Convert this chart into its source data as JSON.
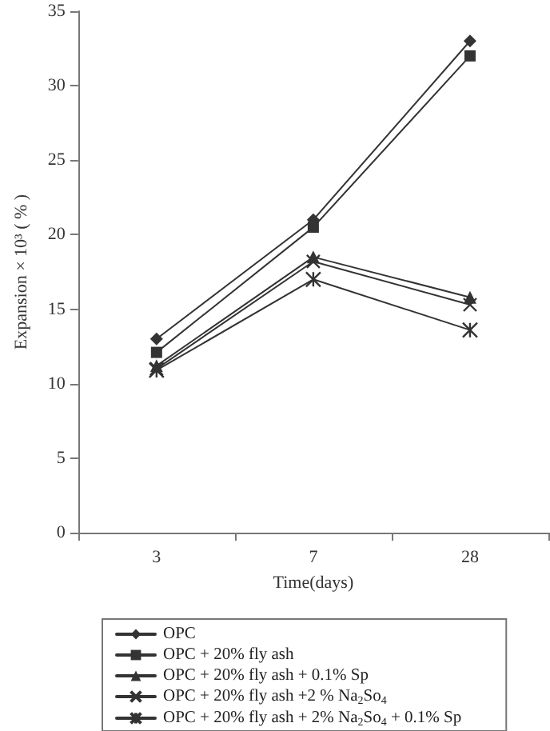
{
  "chart_data": {
    "type": "line",
    "xlabel": "Time(days)",
    "ylabel": "Expansion × 10³ ( % )",
    "categories": [
      "3",
      "7",
      "28"
    ],
    "ylim": [
      0,
      35
    ],
    "yticks": [
      0,
      5,
      10,
      15,
      20,
      25,
      30,
      35
    ],
    "grid": false,
    "legend": "bottom",
    "line_style": "solid",
    "series": [
      {
        "name": "OPC",
        "color": "#333333",
        "marker": "diamond",
        "values": [
          13,
          21,
          33
        ]
      },
      {
        "name": "OPC + 20% fly ash",
        "color": "#333333",
        "marker": "square",
        "values": [
          12.1,
          20.5,
          32
        ]
      },
      {
        "name": "OPC + 20% fly ash + 0.1% Sp",
        "color": "#333333",
        "marker": "triangle",
        "values": [
          11.2,
          18.5,
          15.8
        ]
      },
      {
        "name": "OPC + 20% fly ash +2 % Na$_{2}$So$_{4}$",
        "color": "#333333",
        "marker": "cross",
        "values": [
          11,
          18.2,
          15.3
        ]
      },
      {
        "name": "OPC + 20% fly ash + 2% Na$_{2}$So$_{4}$ + 0.1% Sp",
        "color": "#333333",
        "marker": "cross",
        "values": [
          10.9,
          17,
          13.6
        ]
      }
    ]
  }
}
